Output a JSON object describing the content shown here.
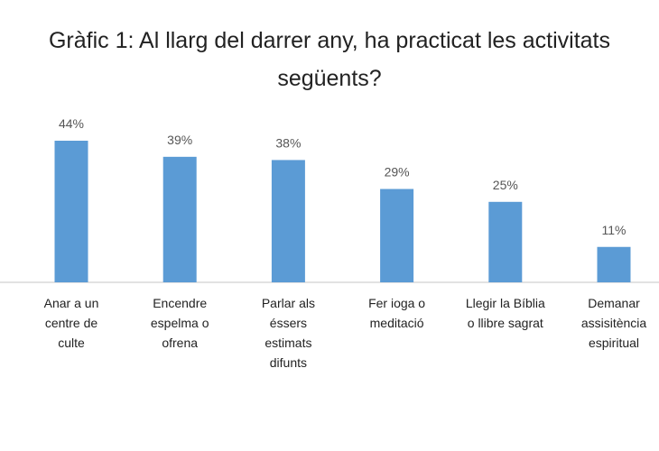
{
  "chart_data": {
    "type": "bar",
    "title_line1": "Gràfic 1: Al llarg del darrer any, ha practicat les activitats",
    "title_line2": "següents?",
    "categories": [
      [
        "Anar a un",
        "centre de",
        "culte"
      ],
      [
        "Encendre",
        "espelma o",
        "ofrena"
      ],
      [
        "Parlar als",
        "éssers",
        "estimats",
        "difunts"
      ],
      [
        "Fer ioga o",
        "meditació"
      ],
      [
        "Llegir la Bíblia",
        "o llibre sagrat"
      ],
      [
        "Demanar",
        "assisitència",
        "espiritual"
      ]
    ],
    "values": [
      44,
      39,
      38,
      29,
      25,
      11
    ],
    "data_labels": [
      "44%",
      "39%",
      "38%",
      "29%",
      "25%",
      "11%"
    ],
    "ylim": [
      0,
      50
    ],
    "grid": false,
    "legend": "none",
    "bar_color": "#5B9BD5"
  }
}
